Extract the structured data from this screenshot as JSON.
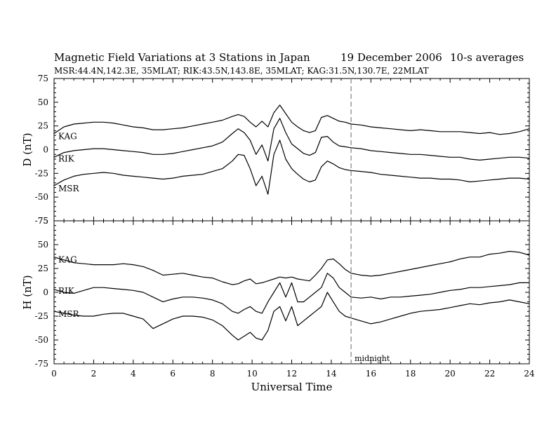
{
  "header": {
    "title": "Magnetic Field Variations at 3 Stations in Japan",
    "date": "19 December 2006",
    "averaging": "10-s averages",
    "stations": "MSR:44.4N,142.3E, 35MLAT;  RIK:43.5N,143.8E, 35MLAT;  KAG:31.5N,130.7E, 22MLAT"
  },
  "chart_data": [
    {
      "type": "line",
      "panel": "D",
      "ylabel": "D (nT)",
      "xlabel": "",
      "xlim": [
        0,
        24
      ],
      "ylim": [
        -75,
        75
      ],
      "yticks": [
        -75,
        -50,
        -25,
        0,
        25,
        50,
        75
      ],
      "xticks": [
        0,
        2,
        4,
        6,
        8,
        10,
        12,
        14,
        16,
        18,
        20,
        22,
        24
      ],
      "x": [
        0,
        0.5,
        1,
        1.5,
        2,
        2.5,
        3,
        3.5,
        4,
        4.5,
        5,
        5.5,
        6,
        6.5,
        7,
        7.5,
        8,
        8.5,
        9,
        9.3,
        9.6,
        9.9,
        10.2,
        10.5,
        10.8,
        11.1,
        11.4,
        11.7,
        12.0,
        12.3,
        12.6,
        12.9,
        13.2,
        13.5,
        13.8,
        14.1,
        14.4,
        14.7,
        15,
        15.5,
        16,
        16.5,
        17,
        17.5,
        18,
        18.5,
        19,
        19.5,
        20,
        20.5,
        21,
        21.5,
        22,
        22.5,
        23,
        23.5,
        24
      ],
      "series": [
        {
          "name": "KAG",
          "values": [
            17,
            24,
            27,
            28,
            29,
            29,
            28,
            26,
            24,
            23,
            21,
            21,
            22,
            23,
            25,
            27,
            29,
            31,
            35,
            37,
            35,
            29,
            24,
            30,
            24,
            39,
            47,
            38,
            29,
            24,
            20,
            18,
            20,
            34,
            36,
            33,
            30,
            29,
            27,
            26,
            24,
            23,
            22,
            21,
            20,
            21,
            20,
            19,
            19,
            19,
            18,
            17,
            18,
            16,
            17,
            19,
            22
          ]
        },
        {
          "name": "RIK",
          "values": [
            -8,
            -3,
            -1,
            0,
            1,
            1,
            0,
            -1,
            -2,
            -3,
            -5,
            -5,
            -4,
            -2,
            0,
            2,
            4,
            8,
            17,
            22,
            18,
            10,
            -5,
            5,
            -12,
            22,
            33,
            18,
            6,
            1,
            -4,
            -6,
            -3,
            13,
            14,
            8,
            4,
            3,
            2,
            1,
            -1,
            -2,
            -3,
            -4,
            -5,
            -5,
            -6,
            -7,
            -8,
            -8,
            -10,
            -11,
            -10,
            -9,
            -8,
            -8,
            -9
          ]
        },
        {
          "name": "MSR",
          "values": [
            -38,
            -32,
            -28,
            -26,
            -25,
            -24,
            -25,
            -27,
            -28,
            -29,
            -30,
            -31,
            -30,
            -28,
            -27,
            -26,
            -23,
            -20,
            -12,
            -5,
            -6,
            -20,
            -38,
            -28,
            -47,
            -5,
            10,
            -10,
            -20,
            -26,
            -31,
            -34,
            -32,
            -18,
            -12,
            -15,
            -19,
            -21,
            -22,
            -23,
            -24,
            -26,
            -27,
            -28,
            -29,
            -30,
            -30,
            -31,
            -31,
            -32,
            -34,
            -33,
            -32,
            -31,
            -30,
            -30,
            -31
          ]
        }
      ]
    },
    {
      "type": "line",
      "panel": "H",
      "ylabel": "H (nT)",
      "xlabel": "Universal Time",
      "xlim": [
        0,
        24
      ],
      "ylim": [
        -75,
        75
      ],
      "yticks": [
        -75,
        -50,
        -25,
        0,
        25,
        50,
        75
      ],
      "xticks": [
        0,
        2,
        4,
        6,
        8,
        10,
        12,
        14,
        16,
        18,
        20,
        22,
        24
      ],
      "x": [
        0,
        0.5,
        1,
        1.5,
        2,
        2.5,
        3,
        3.5,
        4,
        4.5,
        5,
        5.5,
        6,
        6.5,
        7,
        7.5,
        8,
        8.5,
        9,
        9.3,
        9.6,
        9.9,
        10.2,
        10.5,
        10.8,
        11.1,
        11.4,
        11.7,
        12.0,
        12.3,
        12.6,
        12.9,
        13.2,
        13.5,
        13.8,
        14.1,
        14.4,
        14.7,
        15,
        15.5,
        16,
        16.5,
        17,
        17.5,
        18,
        18.5,
        19,
        19.5,
        20,
        20.5,
        21,
        21.5,
        22,
        22.5,
        23,
        23.5,
        24
      ],
      "series": [
        {
          "name": "KAG",
          "values": [
            37,
            34,
            31,
            30,
            29,
            29,
            29,
            30,
            29,
            27,
            23,
            18,
            19,
            20,
            18,
            16,
            15,
            11,
            8,
            9,
            12,
            14,
            9,
            10,
            12,
            14,
            16,
            15,
            16,
            14,
            13,
            12,
            18,
            25,
            34,
            35,
            30,
            24,
            20,
            18,
            17,
            18,
            20,
            22,
            24,
            26,
            28,
            30,
            32,
            35,
            37,
            37,
            40,
            41,
            43,
            42,
            39
          ]
        },
        {
          "name": "RIK",
          "values": [
            3,
            0,
            -1,
            2,
            5,
            5,
            4,
            3,
            2,
            0,
            -5,
            -10,
            -7,
            -5,
            -5,
            -6,
            -8,
            -12,
            -20,
            -22,
            -18,
            -15,
            -20,
            -22,
            -10,
            0,
            10,
            -5,
            10,
            -10,
            -10,
            -5,
            0,
            5,
            20,
            15,
            5,
            0,
            -5,
            -6,
            -5,
            -7,
            -5,
            -5,
            -4,
            -3,
            -2,
            0,
            2,
            3,
            5,
            5,
            6,
            7,
            8,
            10,
            10
          ]
        },
        {
          "name": "MSR",
          "values": [
            -20,
            -22,
            -24,
            -25,
            -25,
            -23,
            -22,
            -22,
            -25,
            -28,
            -38,
            -33,
            -28,
            -25,
            -25,
            -26,
            -29,
            -35,
            -45,
            -50,
            -46,
            -42,
            -48,
            -50,
            -40,
            -20,
            -15,
            -30,
            -15,
            -35,
            -30,
            -25,
            -20,
            -15,
            0,
            -10,
            -20,
            -25,
            -27,
            -30,
            -33,
            -31,
            -28,
            -25,
            -22,
            -20,
            -19,
            -18,
            -16,
            -14,
            -12,
            -13,
            -11,
            -10,
            -8,
            -10,
            -12
          ]
        }
      ]
    }
  ],
  "annotations": {
    "midnight_label": "midnight",
    "midnight_x": 15
  }
}
